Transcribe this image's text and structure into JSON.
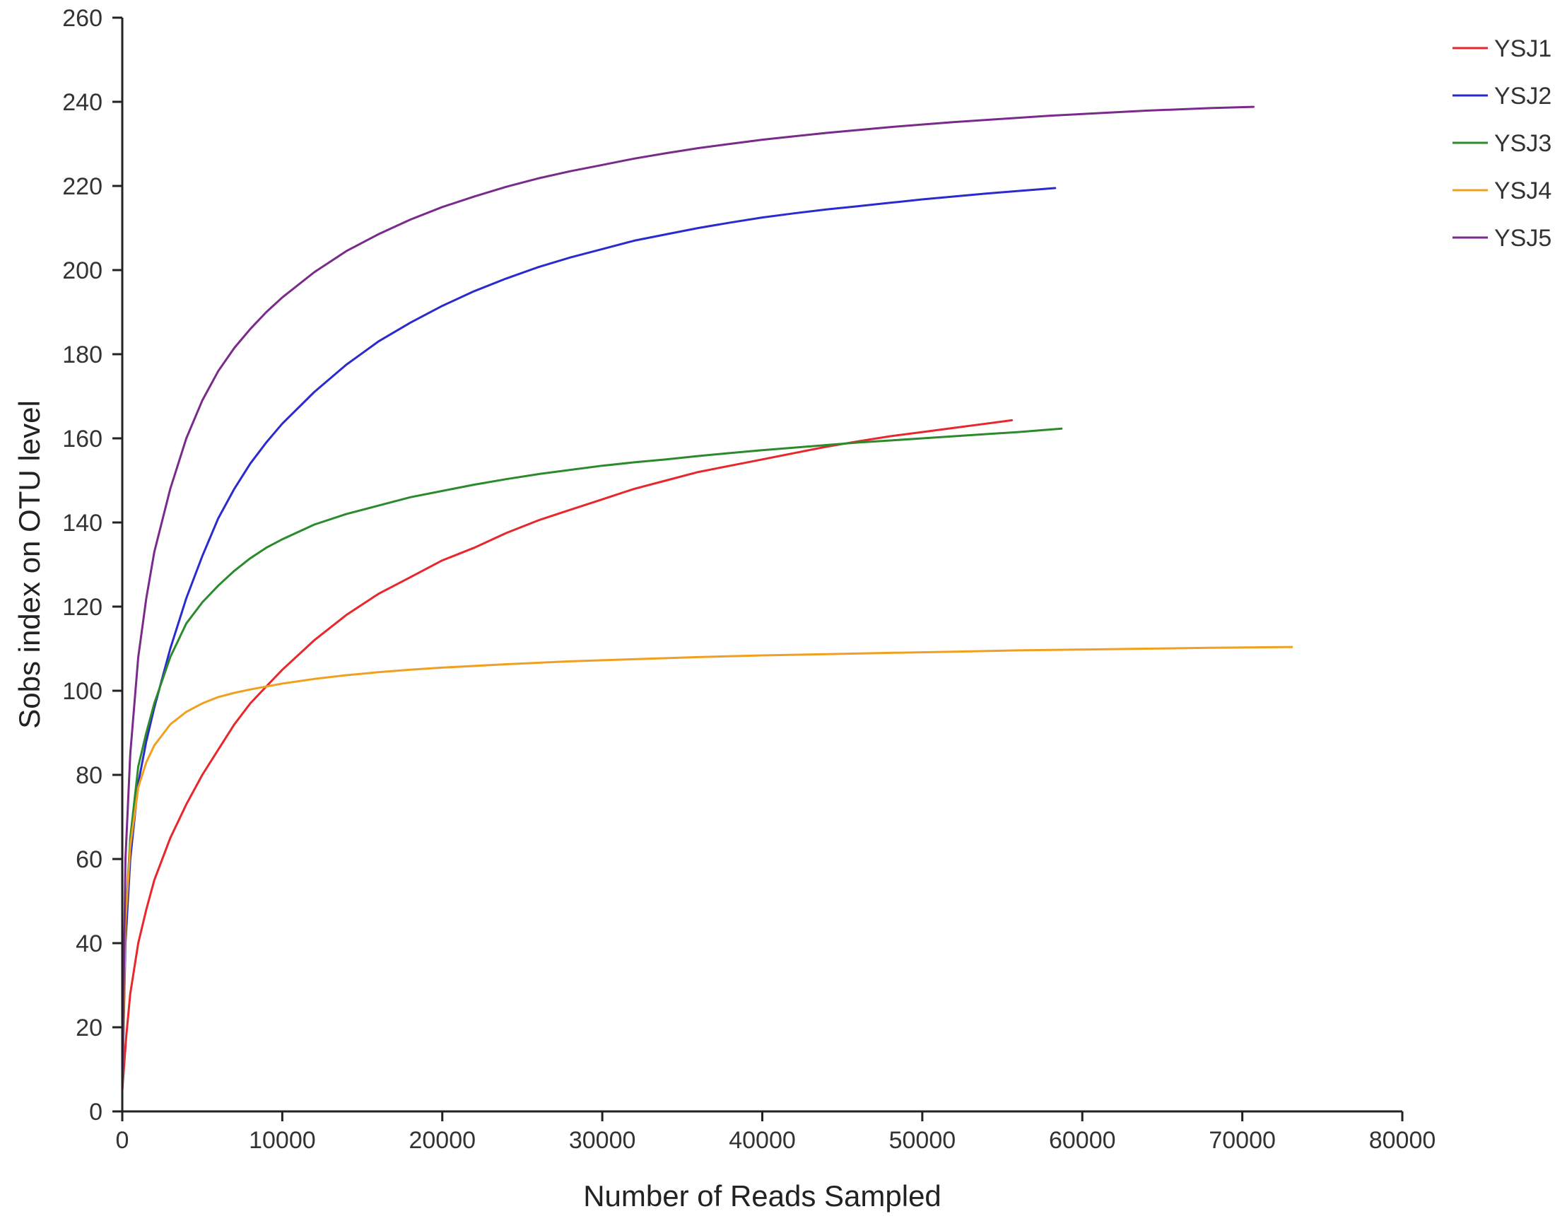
{
  "chart_data": {
    "type": "line",
    "title": "",
    "xlabel": "Number of Reads Sampled",
    "ylabel": "Sobs index on OTU level",
    "xlim": [
      0,
      80000
    ],
    "ylim": [
      0,
      260
    ],
    "x_ticks": [
      0,
      10000,
      20000,
      30000,
      40000,
      50000,
      60000,
      70000,
      80000
    ],
    "y_ticks": [
      0,
      20,
      40,
      60,
      80,
      100,
      120,
      140,
      160,
      180,
      200,
      220,
      240,
      260
    ],
    "grid": false,
    "legend_position": "top-right",
    "series": [
      {
        "name": "YSJ1",
        "color": "#e8262b",
        "x": [
          0,
          250,
          500,
          1000,
          1500,
          2000,
          3000,
          4000,
          5000,
          6000,
          7000,
          8000,
          9000,
          10000,
          12000,
          14000,
          16000,
          18000,
          20000,
          22000,
          24000,
          26000,
          28000,
          30000,
          32000,
          34000,
          36000,
          38000,
          40000,
          42000,
          44000,
          46000,
          48000,
          50000,
          52000,
          54000,
          55600
        ],
        "y": [
          5,
          18,
          28,
          40,
          48,
          55,
          65,
          73,
          80,
          86,
          92,
          97,
          101,
          105,
          112,
          118,
          123,
          127,
          131,
          134,
          137.5,
          140.5,
          143,
          145.5,
          148,
          150,
          152,
          153.5,
          155,
          156.5,
          158,
          159.3,
          160.5,
          161.5,
          162.5,
          163.5,
          164.3
        ]
      },
      {
        "name": "YSJ2",
        "color": "#2a2acf",
        "x": [
          0,
          200,
          500,
          1000,
          1500,
          2000,
          3000,
          4000,
          5000,
          6000,
          7000,
          8000,
          9000,
          10000,
          12000,
          14000,
          16000,
          18000,
          20000,
          22000,
          24000,
          26000,
          28000,
          30000,
          32000,
          34000,
          36000,
          38000,
          40000,
          42000,
          44000,
          46000,
          48000,
          50000,
          52000,
          54000,
          56000,
          58300
        ],
        "y": [
          5,
          40,
          60,
          78,
          88,
          96,
          110,
          122,
          132,
          141,
          148,
          154,
          159,
          163.5,
          171,
          177.5,
          183,
          187.5,
          191.5,
          195,
          198,
          200.7,
          203,
          205,
          207,
          208.5,
          210,
          211.3,
          212.5,
          213.5,
          214.4,
          215.2,
          216,
          216.8,
          217.5,
          218.2,
          218.8,
          219.5
        ]
      },
      {
        "name": "YSJ3",
        "color": "#2b8a2b",
        "x": [
          0,
          200,
          500,
          1000,
          1500,
          2000,
          3000,
          4000,
          5000,
          6000,
          7000,
          8000,
          9000,
          10000,
          12000,
          14000,
          16000,
          18000,
          20000,
          22000,
          24000,
          26000,
          28000,
          30000,
          32000,
          34000,
          36000,
          38000,
          40000,
          42000,
          44000,
          46000,
          48000,
          50000,
          52000,
          54000,
          56000,
          58700
        ],
        "y": [
          5,
          45,
          65,
          82,
          90,
          97,
          108,
          116,
          121,
          125,
          128.5,
          131.5,
          134,
          136,
          139.5,
          142,
          144,
          146,
          147.5,
          149,
          150.3,
          151.5,
          152.5,
          153.5,
          154.3,
          155,
          155.8,
          156.5,
          157.2,
          157.8,
          158.4,
          159,
          159.5,
          160,
          160.5,
          161,
          161.5,
          162.3
        ]
      },
      {
        "name": "YSJ4",
        "color": "#f0a020",
        "x": [
          0,
          200,
          500,
          1000,
          1500,
          2000,
          3000,
          4000,
          5000,
          6000,
          7000,
          8000,
          9000,
          10000,
          12000,
          14000,
          16000,
          18000,
          20000,
          24000,
          28000,
          32000,
          36000,
          40000,
          44000,
          48000,
          52000,
          56000,
          60000,
          64000,
          68000,
          73100
        ],
        "y": [
          5,
          45,
          63,
          77,
          83,
          87,
          92,
          95,
          97,
          98.5,
          99.5,
          100.3,
          101,
          101.7,
          102.8,
          103.7,
          104.4,
          105,
          105.5,
          106.3,
          107,
          107.5,
          108,
          108.4,
          108.7,
          109,
          109.3,
          109.6,
          109.8,
          110,
          110.2,
          110.4
        ]
      },
      {
        "name": "YSJ5",
        "color": "#7a2a8a",
        "x": [
          0,
          200,
          500,
          1000,
          1500,
          2000,
          3000,
          4000,
          5000,
          6000,
          7000,
          8000,
          9000,
          10000,
          12000,
          14000,
          16000,
          18000,
          20000,
          22000,
          24000,
          26000,
          28000,
          30000,
          32000,
          34000,
          36000,
          38000,
          40000,
          42000,
          44000,
          46000,
          48000,
          50000,
          52000,
          54000,
          56000,
          58000,
          60000,
          62000,
          64000,
          66000,
          68000,
          70700
        ],
        "y": [
          5,
          60,
          85,
          108,
          122,
          133,
          148,
          160,
          169,
          176,
          181.5,
          186,
          190,
          193.5,
          199.5,
          204.5,
          208.5,
          212,
          215,
          217.5,
          219.8,
          221.8,
          223.5,
          225,
          226.5,
          227.8,
          229,
          230,
          231,
          231.8,
          232.6,
          233.3,
          234,
          234.6,
          235.2,
          235.7,
          236.2,
          236.7,
          237.1,
          237.5,
          237.9,
          238.2,
          238.5,
          238.8
        ]
      }
    ]
  }
}
